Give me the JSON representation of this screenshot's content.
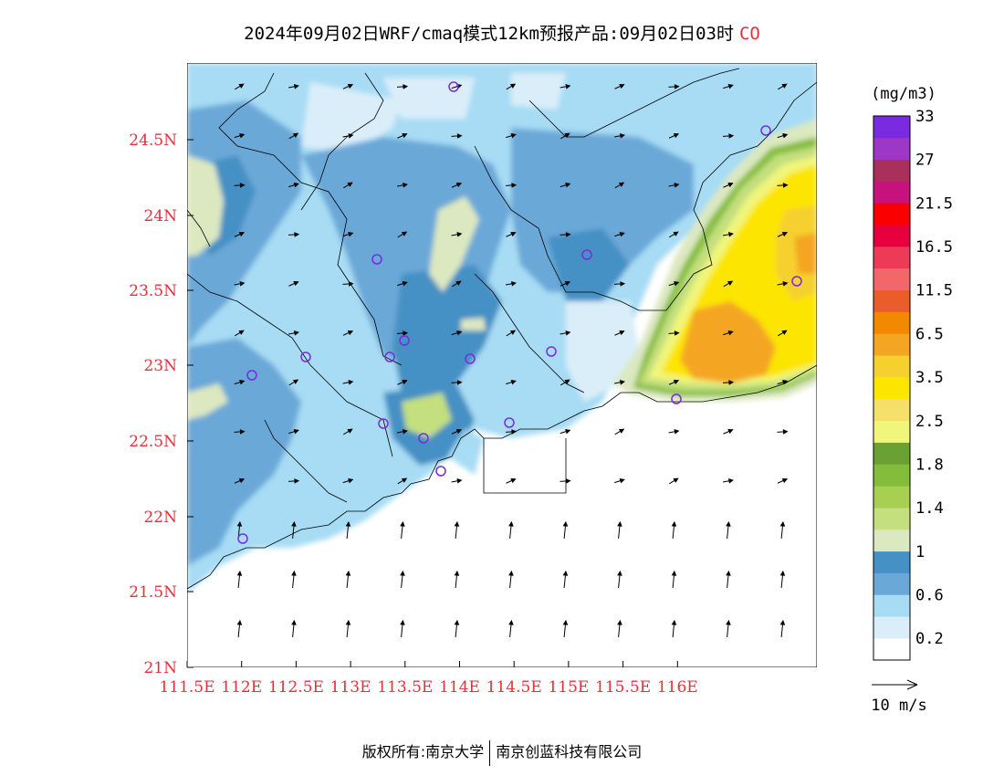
{
  "title": {
    "main": "2024年09月02日WRF/cmaq模式12km预报产品:09月02日03时",
    "variable": "CO"
  },
  "axes": {
    "lat_labels": [
      "24.5N",
      "24N",
      "23.5N",
      "23N",
      "22.5N",
      "22N",
      "21.5N",
      "21N"
    ],
    "lon_labels": [
      "111.5E",
      "112E",
      "112.5E",
      "113E",
      "113.5E",
      "114E",
      "114.5E",
      "115E",
      "115.5E",
      "116E"
    ],
    "label_color": "#e8303a"
  },
  "legend": {
    "unit": "(mg/m3)",
    "colors": [
      "#ffffff",
      "#daeef9",
      "#a7dcf4",
      "#6aa8d8",
      "#4590c4",
      "#dce8c0",
      "#c3df7e",
      "#a7cf52",
      "#84bd3c",
      "#6ba032",
      "#f0f57c",
      "#f4e06a",
      "#fce500",
      "#f6d02e",
      "#f4a623",
      "#f28900",
      "#ea5d2a",
      "#f2676a",
      "#ec3a57",
      "#e6003e",
      "#fb0000",
      "#c7127e",
      "#a8305a",
      "#9c37c8",
      "#7a2ae0"
    ],
    "labels": [
      "0.2",
      "0.6",
      "1",
      "1.4",
      "1.8",
      "2.5",
      "3.5",
      "6.5",
      "11.5",
      "16.5",
      "21.5",
      "27",
      "33"
    ]
  },
  "wind_reference": {
    "label": "10 m/s"
  },
  "footer": {
    "left": "版权所有:南京大学",
    "right": "南京创蓝科技有限公司"
  }
}
